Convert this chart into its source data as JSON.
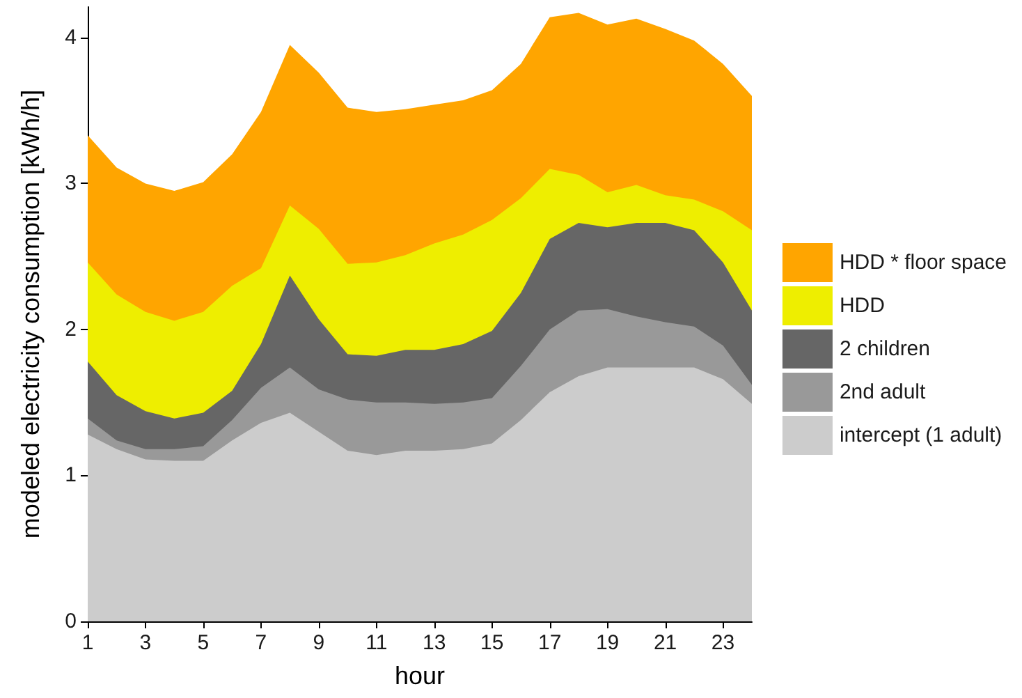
{
  "chart_data": {
    "type": "area",
    "stacked": true,
    "xlabel": "hour",
    "ylabel": "modeled electricity consumption [kWh/h]",
    "x": [
      1,
      2,
      3,
      4,
      5,
      6,
      7,
      8,
      9,
      10,
      11,
      12,
      13,
      14,
      15,
      16,
      17,
      18,
      19,
      20,
      21,
      22,
      23,
      24
    ],
    "xlim": [
      1,
      24
    ],
    "xticks": [
      1,
      3,
      5,
      7,
      9,
      11,
      13,
      15,
      17,
      19,
      21,
      23
    ],
    "ylim": [
      0,
      4.21
    ],
    "yticks": [
      0,
      1,
      2,
      3,
      4
    ],
    "legend": "right",
    "series": [
      {
        "name": "intercept (1 adult)",
        "color": "#cccccc",
        "values": [
          1.28,
          1.18,
          1.11,
          1.1,
          1.1,
          1.24,
          1.36,
          1.43,
          1.3,
          1.17,
          1.14,
          1.17,
          1.17,
          1.18,
          1.22,
          1.38,
          1.57,
          1.68,
          1.74,
          1.74,
          1.74,
          1.74,
          1.66,
          1.49
        ]
      },
      {
        "name": "2nd adult",
        "color": "#999999",
        "values": [
          0.11,
          0.06,
          0.07,
          0.08,
          0.1,
          0.14,
          0.24,
          0.31,
          0.29,
          0.35,
          0.36,
          0.33,
          0.32,
          0.32,
          0.31,
          0.37,
          0.43,
          0.45,
          0.4,
          0.35,
          0.31,
          0.28,
          0.23,
          0.13
        ]
      },
      {
        "name": "2 children",
        "color": "#666666",
        "values": [
          0.39,
          0.31,
          0.26,
          0.21,
          0.23,
          0.2,
          0.3,
          0.63,
          0.48,
          0.31,
          0.32,
          0.36,
          0.37,
          0.4,
          0.46,
          0.5,
          0.62,
          0.6,
          0.56,
          0.64,
          0.68,
          0.66,
          0.57,
          0.51
        ]
      },
      {
        "name": "HDD",
        "color": "#eeee00",
        "values": [
          0.68,
          0.69,
          0.68,
          0.67,
          0.69,
          0.72,
          0.52,
          0.48,
          0.62,
          0.62,
          0.64,
          0.65,
          0.73,
          0.75,
          0.76,
          0.65,
          0.48,
          0.33,
          0.24,
          0.26,
          0.19,
          0.21,
          0.35,
          0.55
        ]
      },
      {
        "name": "HDD * floor space",
        "color": "#ffa500",
        "values": [
          0.87,
          0.87,
          0.88,
          0.89,
          0.89,
          0.9,
          1.07,
          1.1,
          1.07,
          1.07,
          1.03,
          1.0,
          0.95,
          0.92,
          0.89,
          0.92,
          1.04,
          1.11,
          1.15,
          1.14,
          1.14,
          1.09,
          1.01,
          0.92
        ]
      }
    ]
  }
}
